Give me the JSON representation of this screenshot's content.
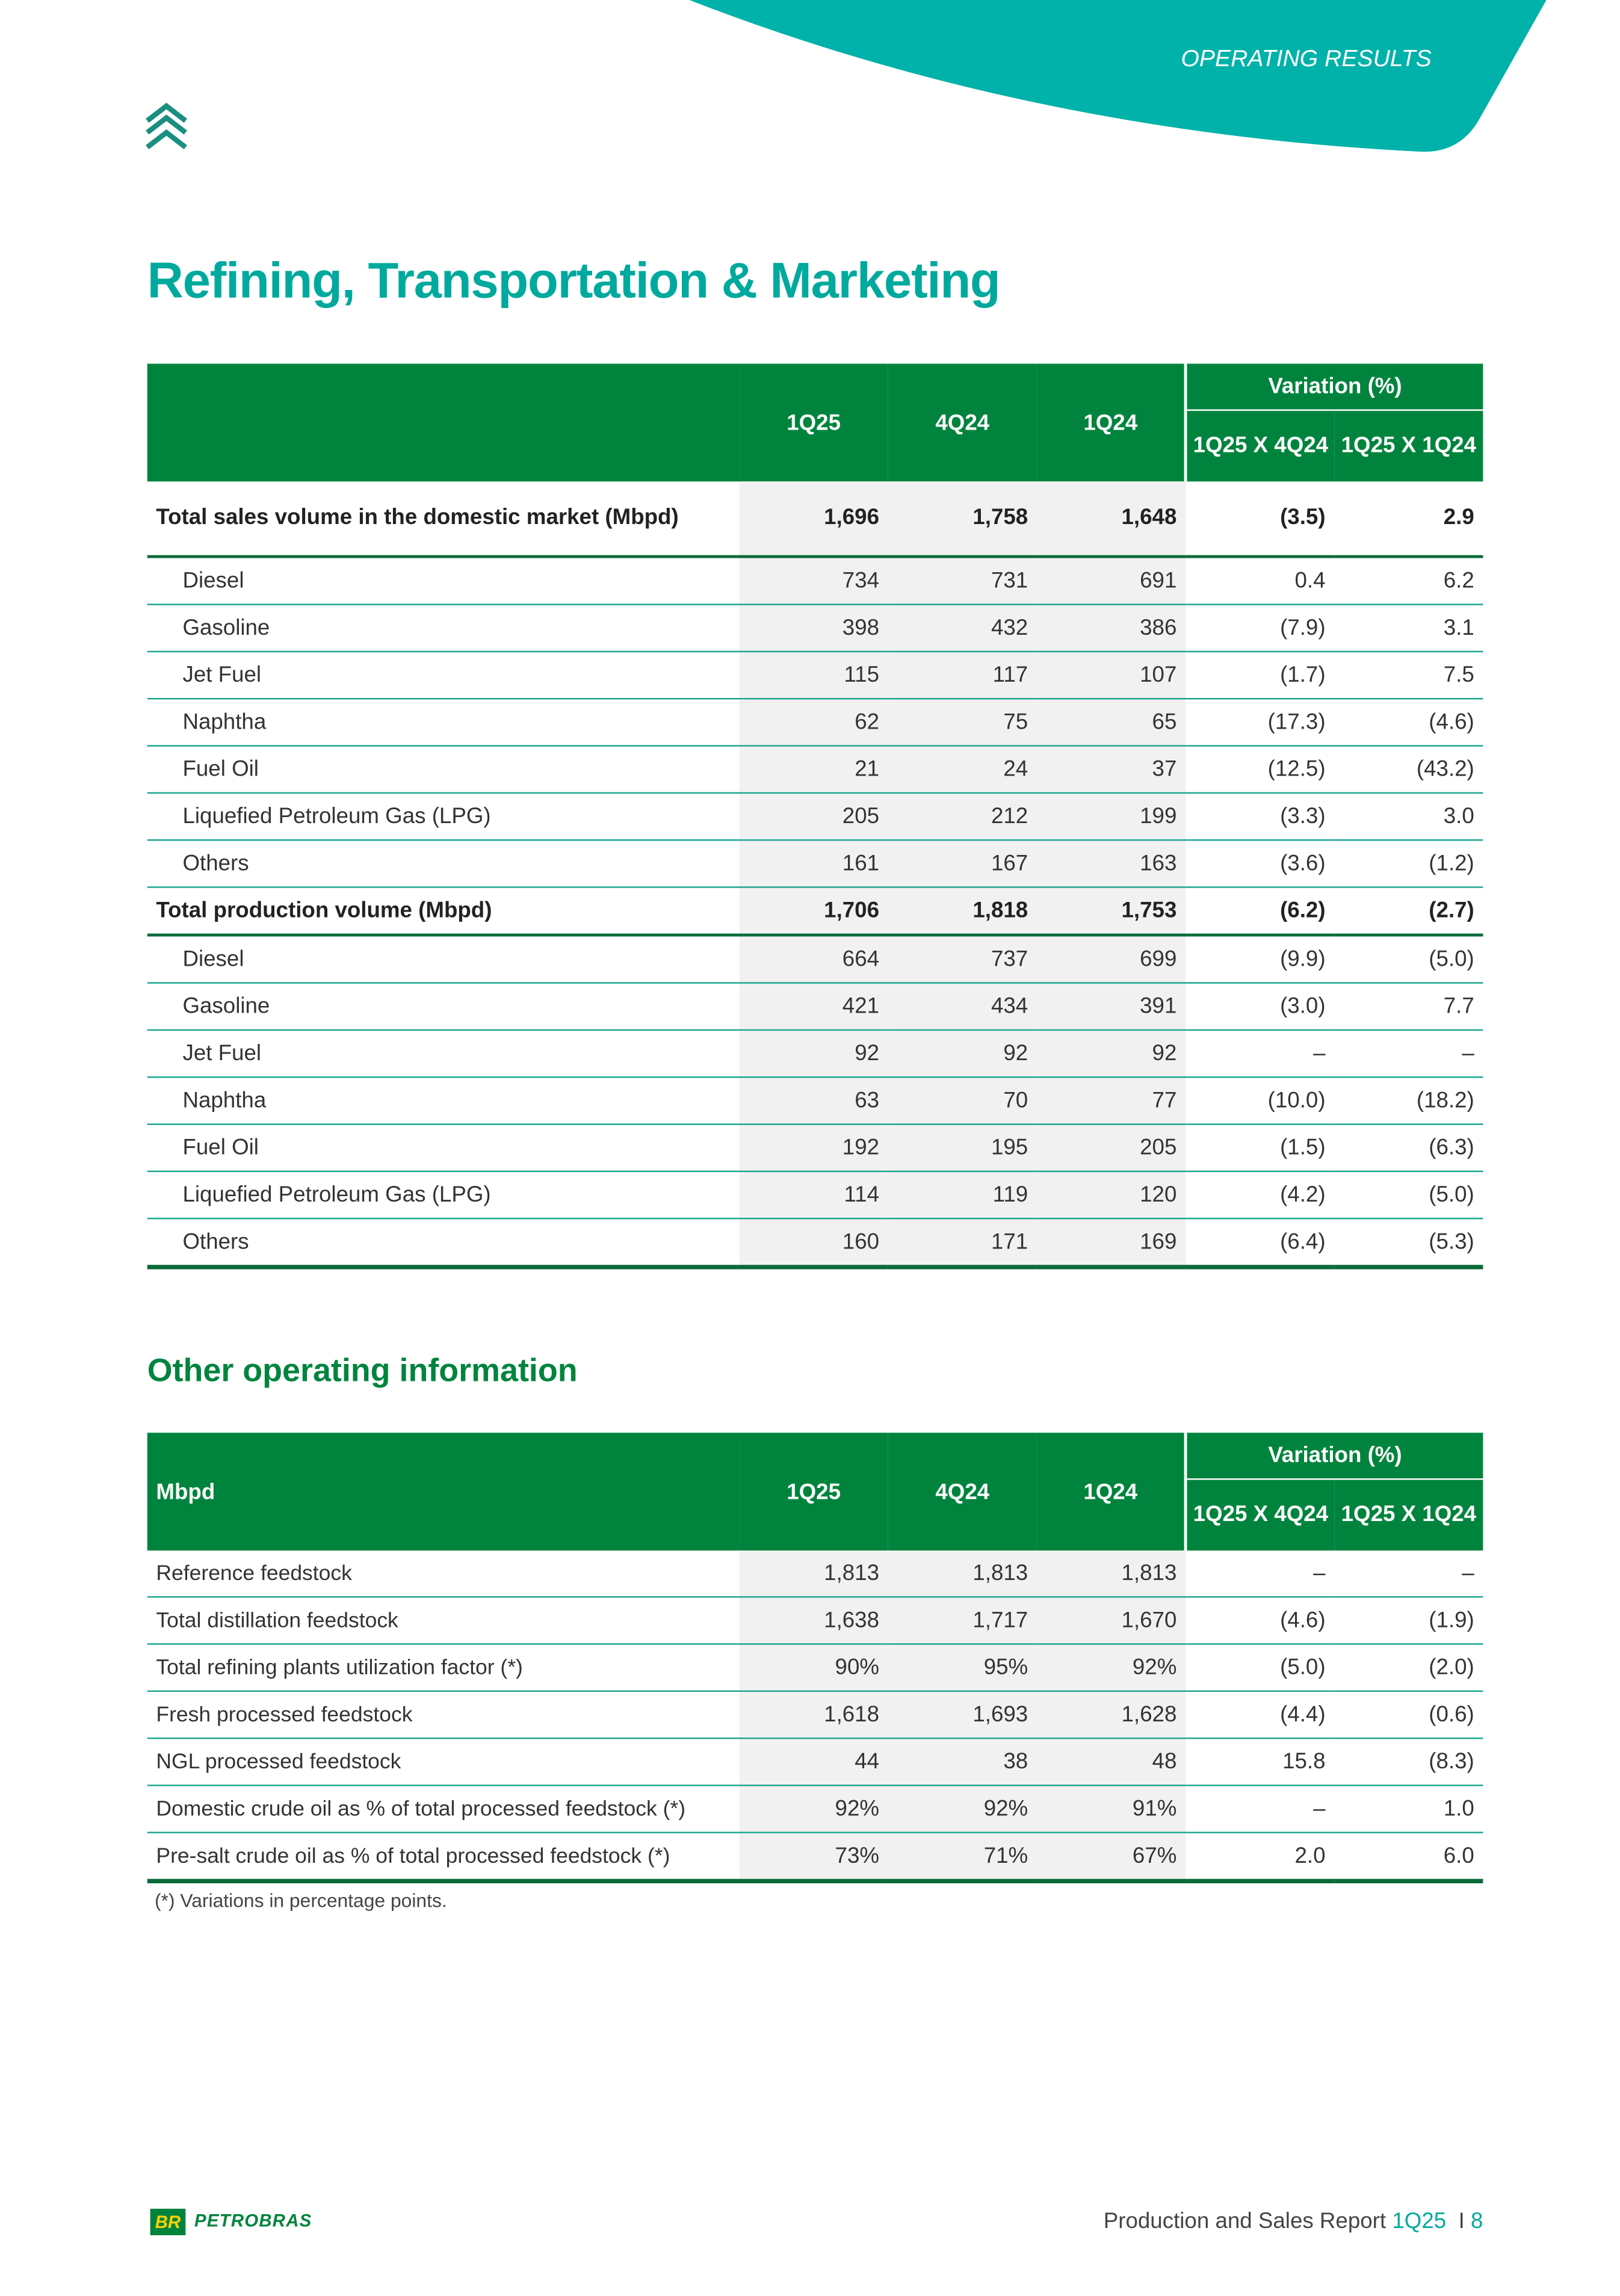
{
  "header": {
    "section": "OPERATING RESULTS"
  },
  "title": "Refining, Transportation & Marketing",
  "table1": {
    "header": {
      "variation": "Variation (%)",
      "columns": [
        "1Q25",
        "4Q24",
        "1Q24",
        "1Q25 X 4Q24",
        "1Q25 X 1Q24"
      ]
    },
    "sections": [
      {
        "label": "Total sales volume in the domestic market (Mbpd)",
        "values": [
          "1,696",
          "1,758",
          "1,648",
          "(3.5)",
          "2.9"
        ],
        "items": [
          {
            "label": "Diesel",
            "values": [
              "734",
              "731",
              "691",
              "0.4",
              "6.2"
            ]
          },
          {
            "label": "Gasoline",
            "values": [
              "398",
              "432",
              "386",
              "(7.9)",
              "3.1"
            ]
          },
          {
            "label": "Jet Fuel",
            "values": [
              "115",
              "117",
              "107",
              "(1.7)",
              "7.5"
            ]
          },
          {
            "label": "Naphtha",
            "values": [
              "62",
              "75",
              "65",
              "(17.3)",
              "(4.6)"
            ]
          },
          {
            "label": "Fuel Oil",
            "values": [
              "21",
              "24",
              "37",
              "(12.5)",
              "(43.2)"
            ]
          },
          {
            "label": "Liquefied Petroleum Gas (LPG)",
            "values": [
              "205",
              "212",
              "199",
              "(3.3)",
              "3.0"
            ]
          },
          {
            "label": "Others",
            "values": [
              "161",
              "167",
              "163",
              "(3.6)",
              "(1.2)"
            ]
          }
        ]
      },
      {
        "label": "Total production volume (Mbpd)",
        "values": [
          "1,706",
          "1,818",
          "1,753",
          "(6.2)",
          "(2.7)"
        ],
        "items": [
          {
            "label": "Diesel",
            "values": [
              "664",
              "737",
              "699",
              "(9.9)",
              "(5.0)"
            ]
          },
          {
            "label": "Gasoline",
            "values": [
              "421",
              "434",
              "391",
              "(3.0)",
              "7.7"
            ]
          },
          {
            "label": "Jet Fuel",
            "values": [
              "92",
              "92",
              "92",
              "–",
              "–"
            ]
          },
          {
            "label": "Naphtha",
            "values": [
              "63",
              "70",
              "77",
              "(10.0)",
              "(18.2)"
            ]
          },
          {
            "label": "Fuel Oil",
            "values": [
              "192",
              "195",
              "205",
              "(1.5)",
              "(6.3)"
            ]
          },
          {
            "label": "Liquefied Petroleum Gas (LPG)",
            "values": [
              "114",
              "119",
              "120",
              "(4.2)",
              "(5.0)"
            ]
          },
          {
            "label": "Others",
            "values": [
              "160",
              "171",
              "169",
              "(6.4)",
              "(5.3)"
            ]
          }
        ]
      }
    ]
  },
  "subtitle": "Other operating information",
  "table2": {
    "header": {
      "label": "Mbpd",
      "variation": "Variation (%)",
      "columns": [
        "1Q25",
        "4Q24",
        "1Q24",
        "1Q25 X 4Q24",
        "1Q25 X 1Q24"
      ]
    },
    "rows": [
      {
        "label": "Reference feedstock",
        "values": [
          "1,813",
          "1,813",
          "1,813",
          "–",
          "–"
        ]
      },
      {
        "label": "Total distillation feedstock",
        "values": [
          "1,638",
          "1,717",
          "1,670",
          "(4.6)",
          "(1.9)"
        ]
      },
      {
        "label": "Total refining plants utilization factor (*)",
        "values": [
          "90%",
          "95%",
          "92%",
          "(5.0)",
          "(2.0)"
        ]
      },
      {
        "label": "Fresh processed feedstock",
        "values": [
          "1,618",
          "1,693",
          "1,628",
          "(4.4)",
          "(0.6)"
        ]
      },
      {
        "label": "NGL processed feedstock",
        "values": [
          "44",
          "38",
          "48",
          "15.8",
          "(8.3)"
        ]
      },
      {
        "label": "Domestic crude oil as % of total processed feedstock (*)",
        "values": [
          "92%",
          "92%",
          "91%",
          "–",
          "1.0"
        ]
      },
      {
        "label": "Pre-salt crude oil as % of total processed feedstock (*)",
        "values": [
          "73%",
          "71%",
          "67%",
          "2.0",
          "6.0"
        ]
      }
    ],
    "footnote": "(*) Variations in percentage points."
  },
  "footer": {
    "logo_mark": "BR",
    "logo_text": "PETROBRAS",
    "report": "Production and Sales Report",
    "period": "1Q25",
    "separator": "I",
    "page": "8"
  }
}
